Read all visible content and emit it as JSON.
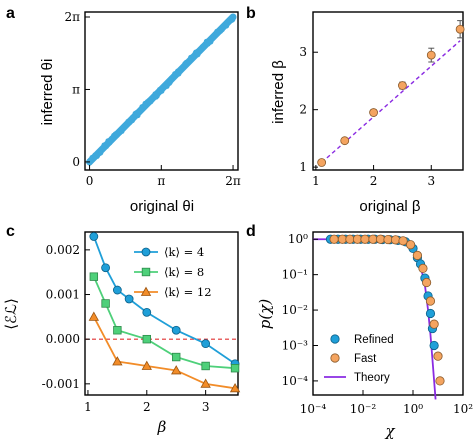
{
  "chart_data": [
    {
      "panel": "a",
      "type": "scatter",
      "xlabel": "original θi",
      "ylabel": "inferred θi",
      "xticks": [
        "0",
        "π",
        "2π"
      ],
      "yticks": [
        "0",
        "π",
        "2π"
      ],
      "xlim": [
        -0.2,
        6.5
      ],
      "ylim": [
        -0.35,
        6.5
      ],
      "color": "#3fa9dc",
      "series": [
        {
          "x": [
            0,
            6.2832
          ],
          "y": [
            0,
            6.2832
          ]
        }
      ]
    },
    {
      "panel": "b",
      "type": "scatter",
      "xlabel": "original β",
      "ylabel": "inferred β",
      "xticks": [
        "1",
        "2",
        "3"
      ],
      "yticks": [
        "1",
        "2",
        "3"
      ],
      "xlim": [
        0.95,
        3.55
      ],
      "ylim": [
        0.95,
        3.7
      ],
      "marker_color": "#f4a460",
      "fit_color": "#8a2be2",
      "series": [
        {
          "x": [
            1.1,
            1.5,
            2.0,
            2.5,
            3.0,
            3.5
          ],
          "y": [
            1.08,
            1.46,
            1.95,
            2.42,
            2.95,
            3.4
          ],
          "yerr": [
            0.04,
            0.04,
            0.05,
            0.06,
            0.12,
            0.15
          ]
        }
      ],
      "fit": {
        "x": [
          1.1,
          3.5
        ],
        "y": [
          1.08,
          3.2
        ]
      }
    },
    {
      "panel": "c",
      "type": "line",
      "xlabel": "β",
      "ylabel": "⟨ℰℒ⟩",
      "xticks": [
        "1",
        "2",
        "3"
      ],
      "yticks": [
        "0.002",
        "0.001",
        "0.000",
        "-0.001"
      ],
      "xlim": [
        0.95,
        3.55
      ],
      "ylim": [
        -0.00125,
        0.0024
      ],
      "reference_line": {
        "y": 0,
        "color": "#e03030"
      },
      "legend": "top-right",
      "series": [
        {
          "name": "⟨k⟩ = 4",
          "color": "#1f9fd8",
          "marker": "circle",
          "x": [
            1.1,
            1.3,
            1.5,
            1.7,
            2.0,
            2.5,
            3.0,
            3.5
          ],
          "y": [
            0.0023,
            0.0016,
            0.0011,
            0.0009,
            0.0006,
            0.0002,
            -0.0001,
            -0.00055
          ]
        },
        {
          "name": "⟨k⟩ = 8",
          "color": "#4ed07a",
          "marker": "square",
          "x": [
            1.1,
            1.3,
            1.5,
            2.0,
            2.5,
            3.0,
            3.5
          ],
          "y": [
            0.0014,
            0.0008,
            0.0002,
            0.0,
            -0.0004,
            -0.0006,
            -0.00065
          ]
        },
        {
          "name": "⟨k⟩ = 12",
          "color": "#f28c28",
          "marker": "triangle",
          "x": [
            1.1,
            1.5,
            2.0,
            2.5,
            3.0,
            3.5
          ],
          "y": [
            0.0005,
            -0.0005,
            -0.0006,
            -0.0007,
            -0.001,
            -0.0011
          ]
        }
      ]
    },
    {
      "panel": "d",
      "type": "scatter",
      "xlabel": "χ",
      "ylabel": "p(χ)",
      "log_x": true,
      "log_y": true,
      "xlim": [
        0.0001,
        100
      ],
      "ylim": [
        4e-05,
        1.6
      ],
      "xticks": [
        "10⁻⁴",
        "10⁻²",
        "10⁰",
        "10²"
      ],
      "yticks": [
        "10⁰",
        "10⁻¹",
        "10⁻²",
        "10⁻³",
        "10⁻⁴"
      ],
      "legend": "bottom-left",
      "series": [
        {
          "name": "Refined",
          "color": "#1f9fd8",
          "marker": "circle",
          "x": [
            0.0005,
            0.001,
            0.002,
            0.004,
            0.008,
            0.016,
            0.03,
            0.06,
            0.12,
            0.25,
            0.5,
            1.0,
            1.5,
            2.0,
            3.0,
            4.0,
            5.0,
            6.0,
            7.0
          ],
          "y": [
            1,
            1,
            1,
            1,
            1,
            1,
            1,
            0.98,
            0.97,
            0.93,
            0.85,
            0.55,
            0.3,
            0.2,
            0.08,
            0.025,
            0.008,
            0.003,
            0.001
          ]
        },
        {
          "name": "Fast",
          "color": "#f4a460",
          "marker": "circle",
          "x": [
            0.0007,
            0.0015,
            0.003,
            0.006,
            0.012,
            0.025,
            0.05,
            0.1,
            0.2,
            0.4,
            0.8,
            1.5,
            2.5,
            3.5,
            5.0,
            7.0,
            10.0,
            12.0
          ],
          "y": [
            1,
            1,
            1,
            1,
            1,
            1,
            1,
            0.98,
            0.96,
            0.9,
            0.7,
            0.35,
            0.15,
            0.06,
            0.018,
            0.004,
            0.0005,
            0.0001
          ]
        },
        {
          "name": "Theory",
          "color": "#8a2be2",
          "marker": "line",
          "x": [
            0.0001,
            0.01,
            0.1,
            0.5,
            1.0,
            2.0,
            3.0,
            4.0,
            5.0,
            6.0,
            7.0,
            8.0
          ],
          "y": [
            1,
            1,
            0.99,
            0.85,
            0.55,
            0.18,
            0.05,
            0.01,
            0.002,
            0.0004,
            0.0001,
            3e-05
          ]
        }
      ]
    }
  ]
}
